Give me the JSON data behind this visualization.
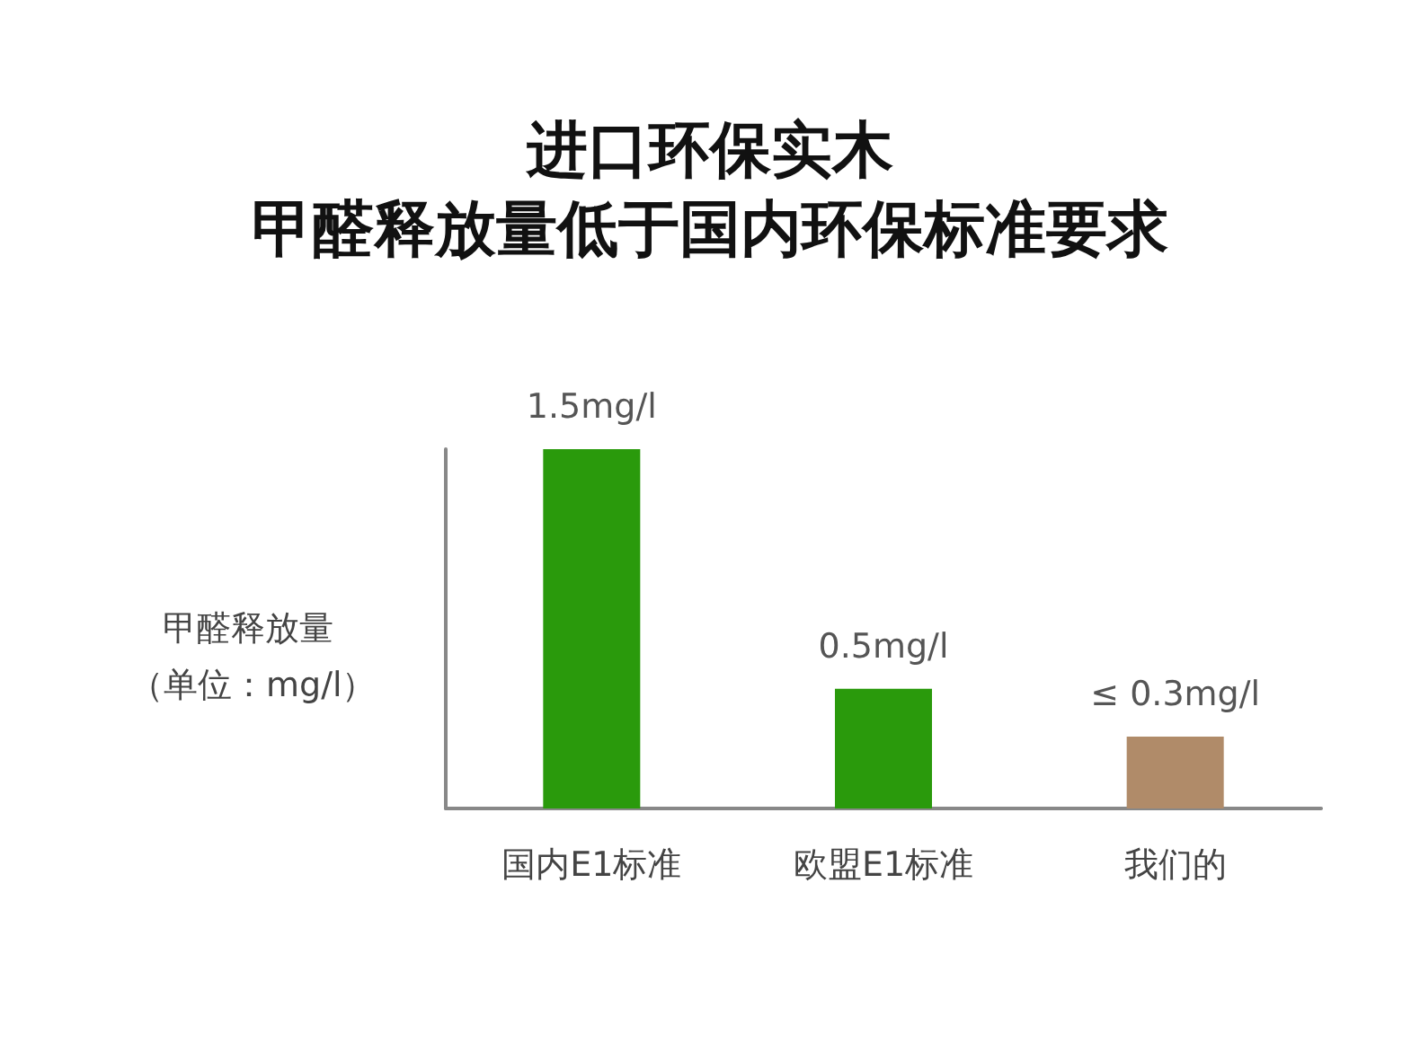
{
  "chart_data": {
    "type": "bar",
    "title": "进口环保实木",
    "subtitle": "甲醛释放量低于国内环保标准要求",
    "ylabel": "甲醛释放量",
    "annotations": [
      "（单位：mg/l）"
    ],
    "categories": [
      "国内E1标准",
      "欧盟E1标准",
      "我们的"
    ],
    "values": [
      1.5,
      0.5,
      0.3
    ],
    "colors": [
      "#2a9a0c",
      "#2a9a0c",
      "#b08b69"
    ],
    "value_labels": [
      "1.5mg/l",
      "0.5mg/l",
      "≤ 0.3mg/l"
    ],
    "grid": false
  }
}
